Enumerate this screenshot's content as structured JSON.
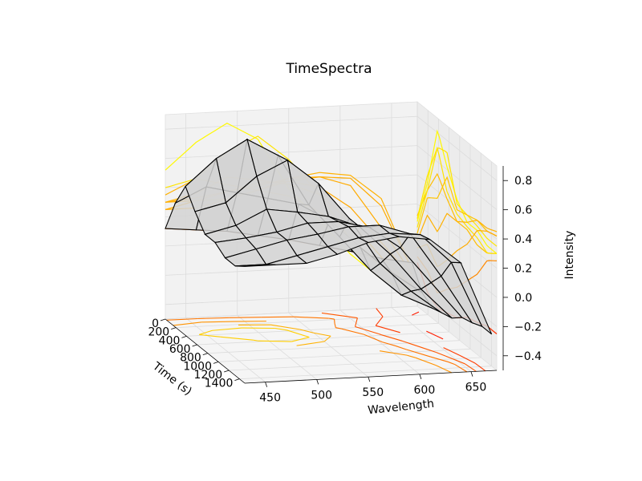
{
  "chart_data": {
    "type": "surface3d",
    "title": "TimeSpectra",
    "xlabel": "Wavelength",
    "ylabel": "Time (s)",
    "zlabel": "Intensity",
    "x_ticks": [
      "450",
      "500",
      "550",
      "600",
      "650"
    ],
    "y_ticks": [
      "0",
      "200",
      "400",
      "600",
      "800",
      "1000",
      "1200",
      "1400"
    ],
    "z_ticks": [
      "0.8",
      "0.6",
      "0.4",
      "0.2",
      "0.0",
      "−0.2",
      "−0.4"
    ],
    "xlim": [
      430,
      675
    ],
    "ylim": [
      0,
      1500
    ],
    "zlim": [
      -0.5,
      0.9
    ],
    "x": [
      430,
      460,
      490,
      520,
      550,
      580,
      610,
      640,
      670
    ],
    "y": [
      0,
      190,
      380,
      560,
      750,
      940,
      1130,
      1320,
      1500
    ],
    "z": [
      [
        0.12,
        0.1,
        0.08,
        0.04,
        0.0,
        -0.05,
        -0.1,
        -0.16,
        -0.2
      ],
      [
        0.35,
        0.45,
        0.4,
        0.35,
        0.3,
        0.18,
        -0.02,
        -0.2,
        -0.35
      ],
      [
        0.52,
        0.7,
        0.82,
        0.7,
        0.35,
        0.12,
        -0.12,
        -0.3,
        -0.4
      ],
      [
        0.4,
        0.45,
        0.62,
        0.72,
        0.55,
        0.3,
        -0.02,
        -0.22,
        -0.38
      ],
      [
        0.3,
        0.35,
        0.45,
        0.42,
        0.38,
        0.3,
        0.1,
        -0.15,
        -0.36
      ],
      [
        0.3,
        0.32,
        0.35,
        0.4,
        0.4,
        0.35,
        0.2,
        -0.05,
        -0.3
      ],
      [
        0.25,
        0.3,
        0.35,
        0.38,
        0.42,
        0.42,
        0.35,
        0.05,
        -0.28
      ],
      [
        0.25,
        0.25,
        0.3,
        0.35,
        0.4,
        0.42,
        0.4,
        0.2,
        -0.25
      ],
      [
        0.3,
        0.3,
        0.3,
        0.35,
        0.42,
        0.45,
        0.42,
        0.25,
        -0.25
      ]
    ],
    "colormap": "autumn",
    "surface_color": "#d3d3d3",
    "wireframe_color": "#000000",
    "pane_color": "#f2f2f2",
    "grid": true,
    "legend": "none"
  }
}
